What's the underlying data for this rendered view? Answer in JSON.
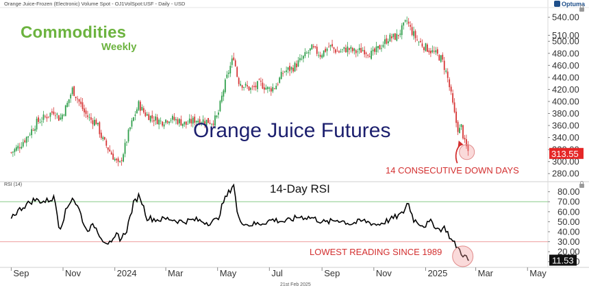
{
  "header": {
    "symbol_line": "Orange Juice-Frozen (Electronic) Volume Spot - OJ1VolSpot:USF - Daily - USD",
    "brand": "Optuma",
    "logo_line1": "Commodities",
    "logo_line2": "Weekly",
    "footer_date": "21st Feb 2025"
  },
  "annotations": {
    "main_title": "Orange Juice Futures",
    "down_days": "14 CONSECUTIVE DOWN DAYS",
    "rsi_title": "14-Day RSI",
    "rsi_low": "LOWEST READING SINCE 1989",
    "rsi_tag": "RSI (14)"
  },
  "colors": {
    "up_candle": "#2e9e4a",
    "down_candle": "#d63434",
    "rsi_line": "#000000",
    "overbought_line": "#9fd49f",
    "oversold_line": "#f0a8a8",
    "annotation_red": "#d32f2f",
    "title_navy": "#1c1f6e",
    "logo_green": "#6cb33f"
  },
  "chart_data": [
    {
      "type": "candlestick",
      "title": "Orange Juice Futures",
      "y_axis_side": "right",
      "ylim": [
        270,
        555
      ],
      "y_ticks": [
        "540.00",
        "510.00",
        "500.00",
        "480.00",
        "460.00",
        "440.00",
        "420.00",
        "400.00",
        "380.00",
        "360.00",
        "340.00",
        "320.00",
        "300.00",
        "280.00"
      ],
      "last_value": "313.55",
      "series": [
        {
          "type": "close",
          "points": [
            [
              "2023-09-01",
              315
            ],
            [
              "2023-09-10",
              325
            ],
            [
              "2023-09-20",
              342
            ],
            [
              "2023-10-01",
              365
            ],
            [
              "2023-10-12",
              375
            ],
            [
              "2023-10-22",
              385
            ],
            [
              "2023-10-28",
              370
            ],
            [
              "2023-11-05",
              392
            ],
            [
              "2023-11-12",
              420
            ],
            [
              "2023-11-18",
              405
            ],
            [
              "2023-11-26",
              382
            ],
            [
              "2023-12-03",
              370
            ],
            [
              "2023-12-10",
              366
            ],
            [
              "2023-12-17",
              338
            ],
            [
              "2023-12-24",
              322
            ],
            [
              "2024-01-01",
              304
            ],
            [
              "2024-01-06",
              292
            ],
            [
              "2024-01-12",
              320
            ],
            [
              "2024-01-18",
              352
            ],
            [
              "2024-01-24",
              376
            ],
            [
              "2024-01-29",
              395
            ],
            [
              "2024-02-05",
              380
            ],
            [
              "2024-02-15",
              372
            ],
            [
              "2024-02-25",
              366
            ],
            [
              "2024-03-05",
              372
            ],
            [
              "2024-03-15",
              368
            ],
            [
              "2024-03-25",
              362
            ],
            [
              "2024-04-05",
              370
            ],
            [
              "2024-04-15",
              368
            ],
            [
              "2024-04-25",
              366
            ],
            [
              "2024-05-01",
              375
            ],
            [
              "2024-05-08",
              420
            ],
            [
              "2024-05-14",
              450
            ],
            [
              "2024-05-20",
              475
            ],
            [
              "2024-05-25",
              435
            ],
            [
              "2024-06-02",
              425
            ],
            [
              "2024-06-10",
              420
            ],
            [
              "2024-06-20",
              430
            ],
            [
              "2024-06-30",
              420
            ],
            [
              "2024-07-08",
              425
            ],
            [
              "2024-07-18",
              450
            ],
            [
              "2024-07-28",
              455
            ],
            [
              "2024-08-08",
              470
            ],
            [
              "2024-08-20",
              488
            ],
            [
              "2024-08-30",
              478
            ],
            [
              "2024-09-10",
              492
            ],
            [
              "2024-09-20",
              482
            ],
            [
              "2024-10-01",
              488
            ],
            [
              "2024-10-10",
              482
            ],
            [
              "2024-10-20",
              486
            ],
            [
              "2024-10-30",
              478
            ],
            [
              "2024-11-08",
              490
            ],
            [
              "2024-11-18",
              505
            ],
            [
              "2024-11-28",
              508
            ],
            [
              "2024-12-04",
              520
            ],
            [
              "2024-12-10",
              534
            ],
            [
              "2024-12-15",
              518
            ],
            [
              "2024-12-22",
              502
            ],
            [
              "2024-12-30",
              492
            ],
            [
              "2025-01-06",
              485
            ],
            [
              "2025-01-14",
              478
            ],
            [
              "2025-01-20",
              470
            ],
            [
              "2025-01-26",
              445
            ],
            [
              "2025-01-31",
              410
            ],
            [
              "2025-02-05",
              370
            ],
            [
              "2025-02-09",
              350
            ],
            [
              "2025-02-12",
              358
            ],
            [
              "2025-02-16",
              330
            ],
            [
              "2025-02-21",
              313.55
            ]
          ]
        }
      ]
    },
    {
      "type": "line",
      "title": "14-Day RSI",
      "y_axis_side": "right",
      "ylim": [
        5,
        88
      ],
      "y_ticks": [
        "80.00",
        "70.00",
        "60.00",
        "50.00",
        "40.00",
        "30.00",
        "20.00",
        "10.00"
      ],
      "reference_lines": [
        70,
        30
      ],
      "last_value": "11.53",
      "series": [
        {
          "type": "rsi",
          "points": [
            [
              "2023-09-01",
              55
            ],
            [
              "2023-09-15",
              65
            ],
            [
              "2023-09-28",
              72
            ],
            [
              "2023-10-10",
              70
            ],
            [
              "2023-10-22",
              74
            ],
            [
              "2023-10-28",
              42
            ],
            [
              "2023-11-04",
              60
            ],
            [
              "2023-11-12",
              75
            ],
            [
              "2023-11-20",
              62
            ],
            [
              "2023-11-28",
              42
            ],
            [
              "2023-12-08",
              46
            ],
            [
              "2023-12-18",
              32
            ],
            [
              "2023-12-28",
              27
            ],
            [
              "2024-01-04",
              38
            ],
            [
              "2024-01-08",
              32
            ],
            [
              "2024-01-15",
              42
            ],
            [
              "2024-01-23",
              68
            ],
            [
              "2024-01-30",
              77
            ],
            [
              "2024-02-08",
              54
            ],
            [
              "2024-02-20",
              52
            ],
            [
              "2024-03-05",
              53
            ],
            [
              "2024-03-20",
              50
            ],
            [
              "2024-04-05",
              52
            ],
            [
              "2024-04-20",
              49
            ],
            [
              "2024-05-01",
              52
            ],
            [
              "2024-05-08",
              70
            ],
            [
              "2024-05-16",
              82
            ],
            [
              "2024-05-20",
              88
            ],
            [
              "2024-05-25",
              53
            ],
            [
              "2024-06-05",
              47
            ],
            [
              "2024-06-20",
              48
            ],
            [
              "2024-07-05",
              52
            ],
            [
              "2024-07-20",
              50
            ],
            [
              "2024-08-05",
              55
            ],
            [
              "2024-08-20",
              54
            ],
            [
              "2024-09-05",
              49
            ],
            [
              "2024-09-20",
              52
            ],
            [
              "2024-10-05",
              48
            ],
            [
              "2024-10-20",
              51
            ],
            [
              "2024-11-05",
              47
            ],
            [
              "2024-11-20",
              52
            ],
            [
              "2024-12-05",
              58
            ],
            [
              "2024-12-11",
              70
            ],
            [
              "2024-12-18",
              52
            ],
            [
              "2024-12-30",
              46
            ],
            [
              "2025-01-08",
              50
            ],
            [
              "2025-01-16",
              42
            ],
            [
              "2025-01-24",
              44
            ],
            [
              "2025-01-31",
              32
            ],
            [
              "2025-02-07",
              25
            ],
            [
              "2025-02-14",
              17
            ],
            [
              "2025-02-21",
              11.53
            ]
          ]
        }
      ]
    },
    {
      "type": "time_axis",
      "labels": [
        "Sep",
        "Nov",
        "2024",
        "Mar",
        "May",
        "Jul",
        "Sep",
        "Nov",
        "2025",
        "Mar",
        "May"
      ],
      "dates": [
        "2023-09-01",
        "2023-11-01",
        "2024-01-01",
        "2024-03-01",
        "2024-05-01",
        "2024-07-01",
        "2024-09-01",
        "2024-11-01",
        "2025-01-01",
        "2025-03-01",
        "2025-05-01"
      ]
    }
  ]
}
